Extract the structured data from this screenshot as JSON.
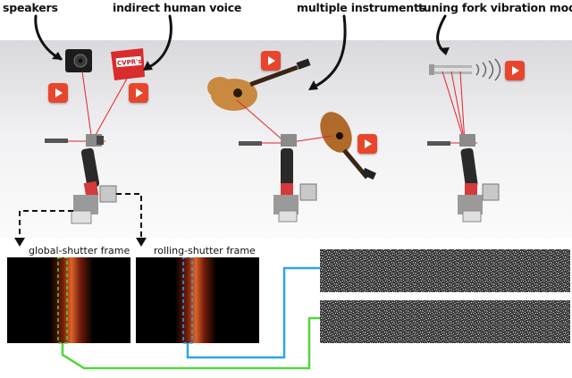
{
  "labels": {
    "speakers": "speakers",
    "indirect_voice": "indirect human voice",
    "multiple_instruments": "multiple instruments",
    "tuning_fork": "tuning fork vibration modes",
    "global_frame": "global-shutter frame",
    "rolling_frame": "rolling-shutter frame"
  },
  "props": {
    "chip_bag_text": "CVPR's"
  },
  "colors": {
    "laser": "#e8202a",
    "play_button": "#e8462c",
    "global_link": "#52d63a",
    "rolling_link": "#2aa7e6",
    "dashed_link": "#111111"
  },
  "icons": [
    "play-icon",
    "speaker-icon",
    "chip-bag-icon",
    "guitar-icon",
    "tuning-fork-icon",
    "camera-icon"
  ]
}
